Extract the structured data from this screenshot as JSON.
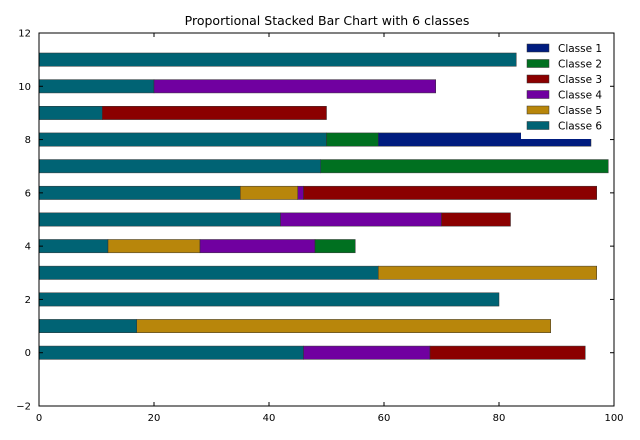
{
  "chart_data": {
    "type": "bar",
    "orientation": "horizontal",
    "stacked": true,
    "title": "Proportional Stacked Bar Chart with 6 classes",
    "xlabel": "",
    "ylabel": "",
    "xlim": [
      0,
      100
    ],
    "ylim": [
      -2,
      12
    ],
    "x_ticks": [
      0,
      20,
      40,
      60,
      80,
      100
    ],
    "y_ticks": [
      -2,
      0,
      2,
      4,
      6,
      8,
      10,
      12
    ],
    "grid": false,
    "legend_position": "top-right",
    "categories": [
      0,
      1,
      2,
      3,
      4,
      5,
      6,
      7,
      8,
      9,
      10,
      11
    ],
    "series": [
      {
        "name": "Classe 6",
        "color": "#006374",
        "values": [
          46,
          17,
          80,
          59,
          12,
          42,
          35,
          49,
          50,
          11,
          20,
          83
        ]
      },
      {
        "name": "Classe 5",
        "color": "#b8860b",
        "values": [
          0,
          72,
          0,
          38,
          16,
          0,
          10,
          0,
          0,
          0,
          0,
          0
        ]
      },
      {
        "name": "Classe 4",
        "color": "#7000a0",
        "values": [
          22,
          0,
          0,
          0,
          20,
          28,
          1,
          0,
          0,
          0,
          49,
          0
        ]
      },
      {
        "name": "Classe 3",
        "color": "#8b0000",
        "values": [
          27,
          0,
          0,
          0,
          0,
          12,
          51,
          0,
          0,
          39,
          0,
          0
        ]
      },
      {
        "name": "Classe 2",
        "color": "#007020",
        "values": [
          0,
          0,
          0,
          0,
          7,
          0,
          0,
          50,
          9,
          0,
          0,
          0
        ]
      },
      {
        "name": "Classe 1",
        "color": "#001c7f",
        "values": [
          0,
          0,
          0,
          0,
          0,
          0,
          0,
          0,
          37,
          0,
          0,
          0
        ]
      }
    ],
    "legend_order": [
      "Classe 1",
      "Classe 2",
      "Classe 3",
      "Classe 4",
      "Classe 5",
      "Classe 6"
    ]
  }
}
